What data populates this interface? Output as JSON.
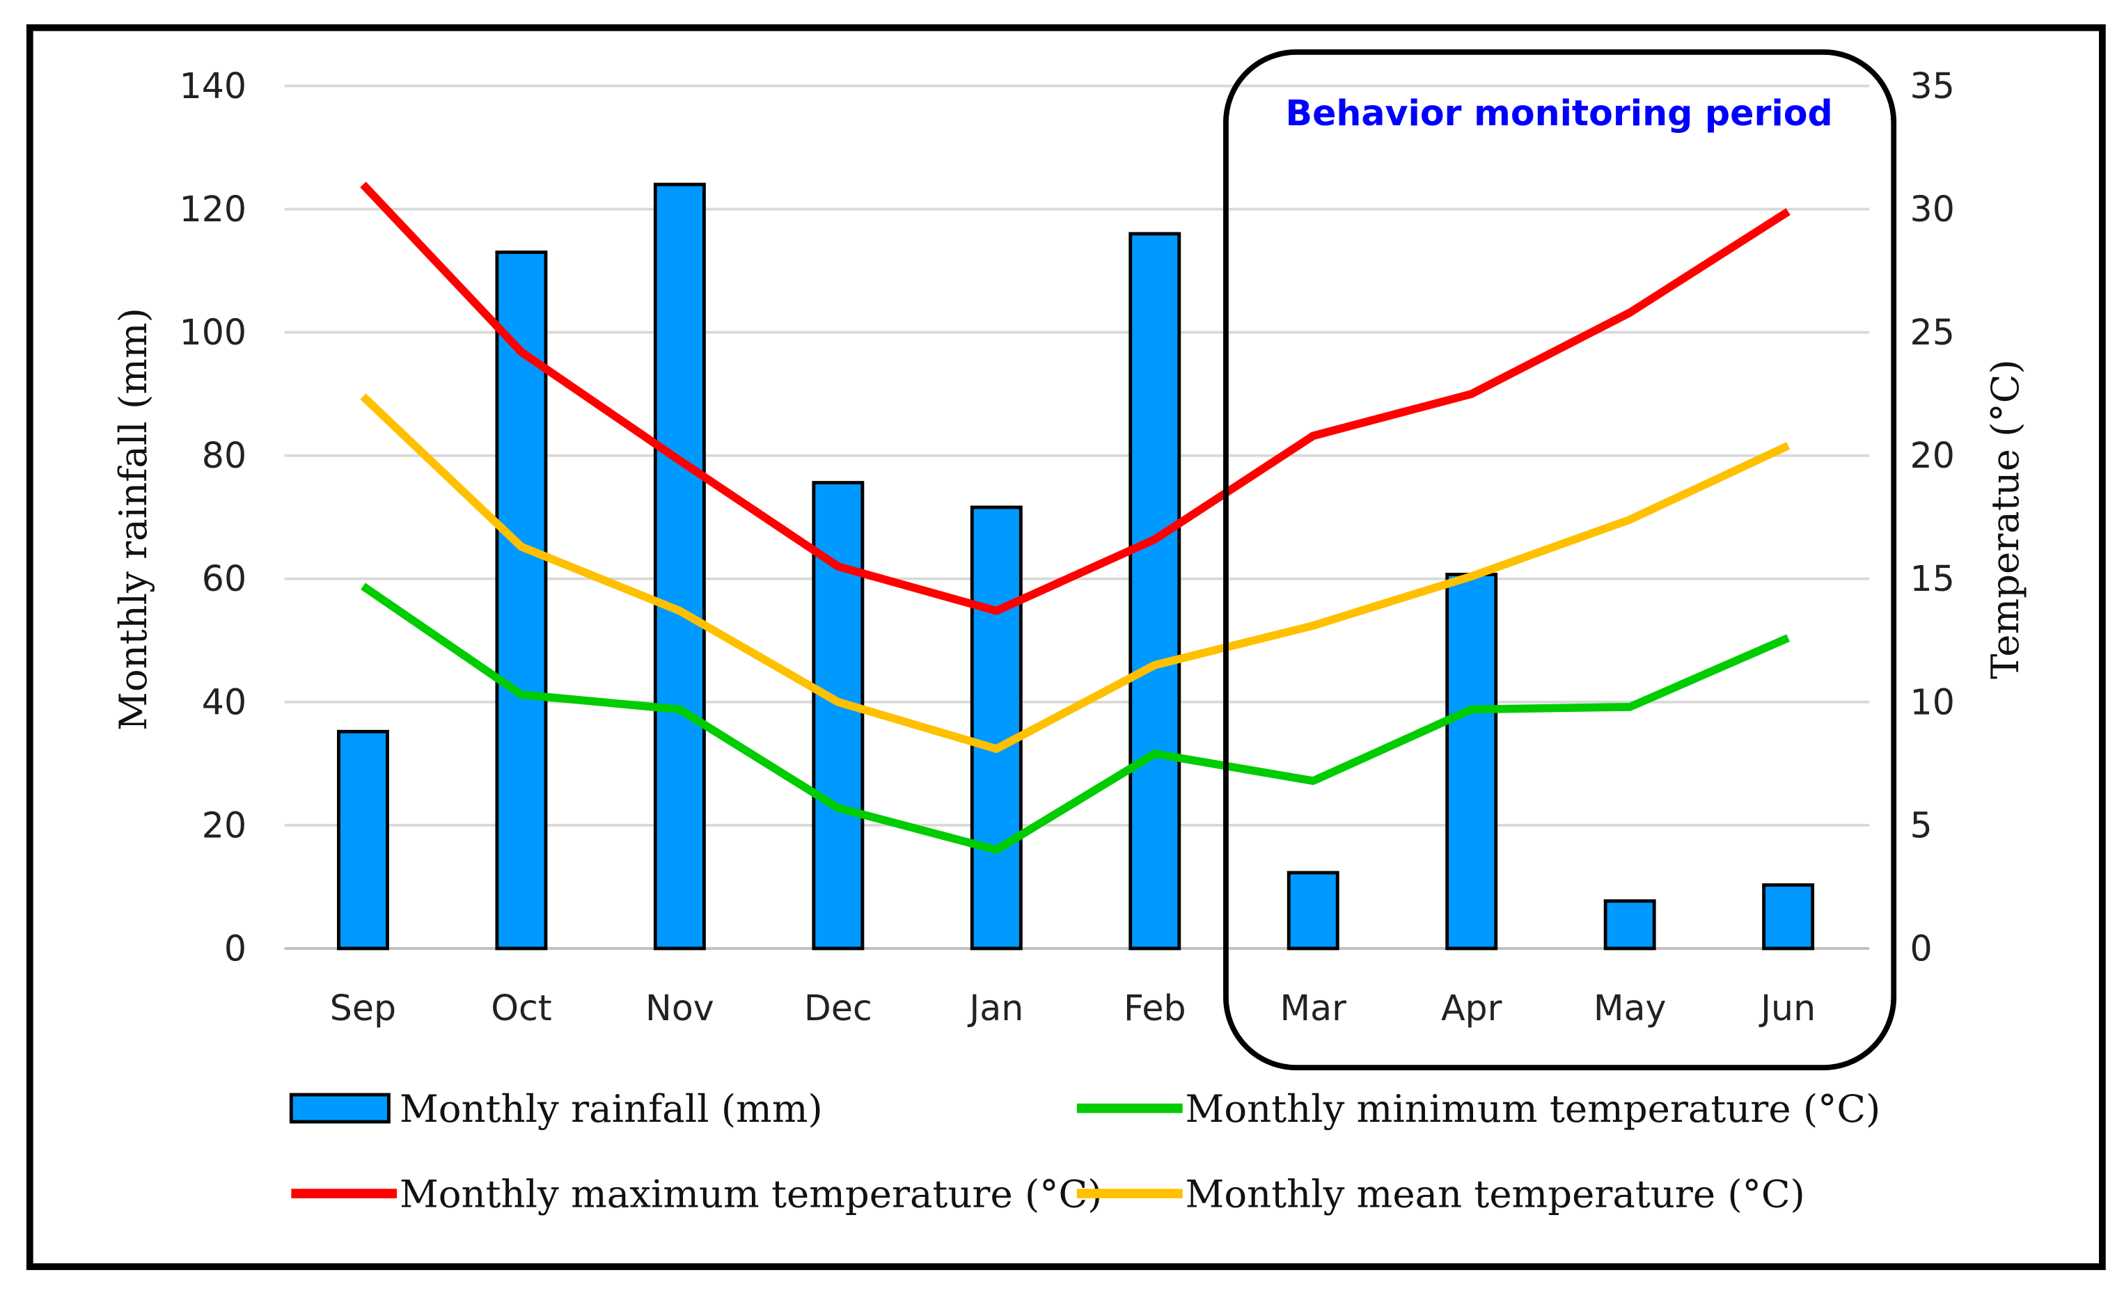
{
  "chart_data": {
    "type": "bar+line",
    "categories": [
      "Sep",
      "Oct",
      "Nov",
      "Dec",
      "Jan",
      "Feb",
      "Mar",
      "Apr",
      "May",
      "Jun"
    ],
    "series": [
      {
        "name": "Monthly rainfall (mm)",
        "type": "bar",
        "axis": "left",
        "color": "#0099ff",
        "values": [
          35.2,
          113,
          124,
          75.6,
          71.6,
          116,
          12.3,
          60.7,
          7.7,
          10.3
        ]
      },
      {
        "name": "Monthly minimum temperature (°C)",
        "type": "line",
        "axis": "right",
        "color": "#00cc00",
        "values": [
          14.7,
          10.3,
          9.7,
          5.7,
          4.0,
          7.9,
          6.8,
          9.7,
          9.8,
          12.6
        ]
      },
      {
        "name": "Monthly maximum temperature (°C)",
        "type": "line",
        "axis": "right",
        "color": "#ff0000",
        "values": [
          31.0,
          24.2,
          19.8,
          15.5,
          13.7,
          16.6,
          20.8,
          22.5,
          25.8,
          29.9
        ]
      },
      {
        "name": "Monthly mean temperature (°C)",
        "type": "line",
        "axis": "right",
        "color": "#ffc000",
        "values": [
          22.4,
          16.3,
          13.7,
          10.0,
          8.1,
          11.5,
          13.1,
          15.1,
          17.4,
          20.4
        ]
      }
    ],
    "ylabel": "Monthly rainfall (mm)",
    "ylim": [
      0,
      140
    ],
    "yticks": [
      0,
      20,
      40,
      60,
      80,
      100,
      120,
      140
    ],
    "y2label": "Temperatue (°C)",
    "y2lim": [
      0,
      35
    ],
    "y2ticks": [
      0,
      5,
      10,
      15,
      20,
      25,
      30,
      35
    ],
    "grid": true,
    "legend_placement": "bottom",
    "annotation": {
      "text": "Behavior monitoring period",
      "from": "Mar",
      "to": "Jun"
    }
  }
}
